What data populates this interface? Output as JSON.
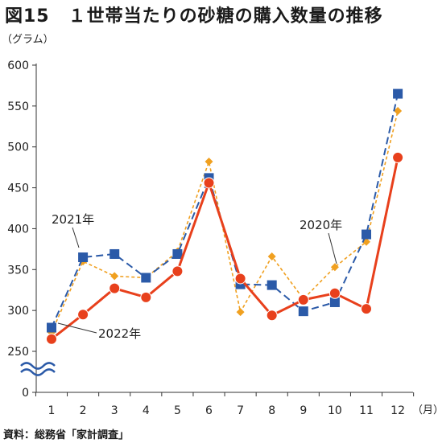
{
  "title": "図15　１世帯当たりの砂糖の購入数量の推移",
  "source": "資料：総務省「家計調査」",
  "chart_data": {
    "type": "line",
    "y_unit": "（グラム）",
    "x_unit": "（月）",
    "categories": [
      "1",
      "2",
      "3",
      "4",
      "5",
      "6",
      "7",
      "8",
      "9",
      "10",
      "11",
      "12"
    ],
    "y_ticks": [
      "0",
      "250",
      "300",
      "350",
      "400",
      "450",
      "500",
      "550",
      "600"
    ],
    "ylim": [
      250,
      600
    ],
    "axis_break": true,
    "grid": false,
    "series": [
      {
        "name": "2020年",
        "color": "#f0a020",
        "style": "dotted",
        "marker": "diamond",
        "values": [
          273,
          360,
          342,
          340,
          372,
          482,
          298,
          366,
          314,
          353,
          384,
          544
        ]
      },
      {
        "name": "2021年",
        "color": "#2b5aa8",
        "style": "dashed",
        "marker": "square",
        "values": [
          279,
          365,
          369,
          340,
          369,
          462,
          332,
          331,
          299,
          310,
          393,
          565
        ]
      },
      {
        "name": "2022年",
        "color": "#e8401c",
        "style": "solid",
        "marker": "circle",
        "values": [
          265,
          295,
          327,
          316,
          348,
          456,
          339,
          294,
          313,
          321,
          302,
          487
        ]
      }
    ]
  }
}
